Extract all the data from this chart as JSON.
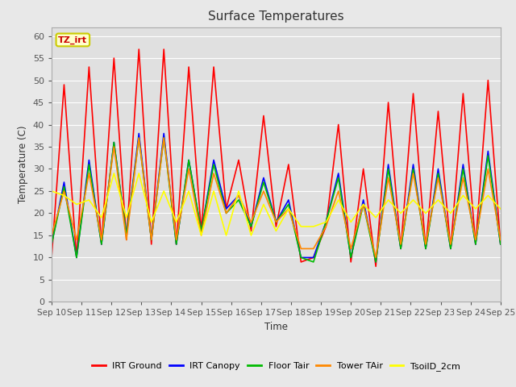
{
  "title": "Surface Temperatures",
  "xlabel": "Time",
  "ylabel": "Temperature (C)",
  "annotation_text": "TZ_irt",
  "annotation_facecolor": "#ffffcc",
  "annotation_edgecolor": "#cccc00",
  "annotation_textcolor": "#cc0000",
  "xlim_start": 0,
  "xlim_end": 15,
  "ylim": [
    0,
    62
  ],
  "yticks": [
    0,
    5,
    10,
    15,
    20,
    25,
    30,
    35,
    40,
    45,
    50,
    55,
    60
  ],
  "xtick_labels": [
    "Sep 10",
    "Sep 11",
    "Sep 12",
    "Sep 13",
    "Sep 14",
    "Sep 15",
    "Sep 16",
    "Sep 17",
    "Sep 18",
    "Sep 19",
    "Sep 20",
    "Sep 21",
    "Sep 22",
    "Sep 23",
    "Sep 24",
    "Sep 25"
  ],
  "plot_bgcolor": "#e0e0e0",
  "fig_bgcolor": "#e8e8e8",
  "grid_color": "#ffffff",
  "series": {
    "IRT_Ground": {
      "color": "#ff0000",
      "linewidth": 1.2,
      "label": "IRT Ground",
      "values": [
        10,
        49,
        10,
        53,
        13,
        55,
        14,
        57,
        13,
        57,
        13,
        53,
        16,
        53,
        21,
        32,
        16,
        42,
        17,
        31,
        9,
        10,
        17,
        40,
        9,
        30,
        8,
        45,
        12,
        47,
        12,
        43,
        12,
        47,
        13,
        50,
        13
      ]
    },
    "IRT_Canopy": {
      "color": "#0000ff",
      "linewidth": 1.2,
      "label": "IRT Canopy",
      "values": [
        13,
        27,
        10,
        32,
        13,
        36,
        15,
        38,
        14,
        38,
        13,
        32,
        16,
        32,
        21,
        24,
        17,
        28,
        18,
        23,
        10,
        10,
        18,
        29,
        10,
        23,
        9,
        31,
        12,
        31,
        12,
        30,
        12,
        31,
        13,
        34,
        13
      ]
    },
    "Floor_TAir": {
      "color": "#00bb00",
      "linewidth": 1.2,
      "label": "Floor Tair",
      "values": [
        13,
        26,
        10,
        31,
        13,
        36,
        15,
        37,
        14,
        37,
        13,
        32,
        16,
        31,
        20,
        23,
        17,
        27,
        18,
        22,
        10,
        9,
        18,
        28,
        10,
        22,
        9,
        30,
        12,
        30,
        12,
        29,
        12,
        30,
        13,
        33,
        13
      ]
    },
    "Tower_TAir": {
      "color": "#ff8800",
      "linewidth": 1.2,
      "label": "Tower TAir",
      "values": [
        15,
        25,
        14,
        29,
        14,
        35,
        14,
        37,
        14,
        37,
        14,
        30,
        15,
        29,
        20,
        24,
        18,
        25,
        18,
        21,
        12,
        12,
        17,
        25,
        12,
        22,
        10,
        28,
        13,
        29,
        13,
        28,
        13,
        28,
        14,
        30,
        14
      ]
    },
    "TsoilD_2cm": {
      "color": "#ffff00",
      "linewidth": 1.2,
      "label": "TsoilD_2cm",
      "values": [
        25,
        24,
        22,
        23,
        19,
        29,
        19,
        29,
        18,
        25,
        18,
        25,
        15,
        25,
        15,
        25,
        15,
        22,
        16,
        21,
        17,
        17,
        18,
        23,
        18,
        22,
        19,
        23,
        20,
        23,
        20,
        23,
        20,
        24,
        21,
        24,
        21
      ]
    }
  }
}
